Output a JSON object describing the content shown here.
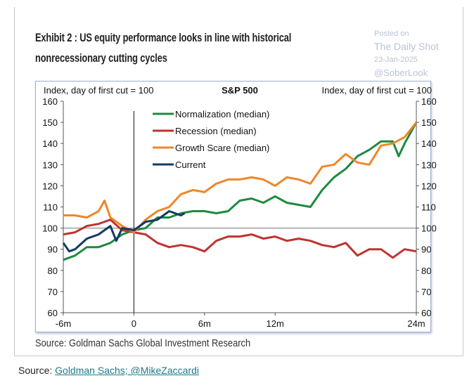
{
  "card": {
    "title_line1": "Exhibit 2 : US equity performance looks in line with historical",
    "title_line2": "nonrecessionary cutting cycles",
    "chart_source": "Source: Goldman Sachs Global Investment Research"
  },
  "watermark": {
    "posted_on": "Posted on",
    "brand": "The Daily Shot",
    "date": "23-Jan-2025",
    "handle": "@SoberLook"
  },
  "footer": {
    "source_label": "Source:",
    "source_link": "Goldman Sachs; @MikeZaccardi"
  },
  "chart_data": {
    "type": "line",
    "title": "S&P 500",
    "ylabel_left": "Index, day of first cut = 100",
    "ylabel_right": "Index, day of first cut = 100",
    "xlim": [
      -6,
      24
    ],
    "ylim": [
      60,
      160
    ],
    "x_ticks": [
      {
        "value": -6,
        "label": "-6m"
      },
      {
        "value": 0,
        "label": "0"
      },
      {
        "value": 6,
        "label": "6m"
      },
      {
        "value": 12,
        "label": "12m"
      },
      {
        "value": 24,
        "label": "24m"
      }
    ],
    "y_ticks": [
      60,
      70,
      80,
      90,
      100,
      110,
      120,
      130,
      140,
      150,
      160
    ],
    "reference_lines": {
      "y": 100,
      "x": 0
    },
    "grid": false,
    "legend_position": "top-left-center",
    "series": [
      {
        "name": "Normalization (median)",
        "color": "#1e8a3e",
        "x": [
          -6,
          -5,
          -4,
          -3,
          -2,
          -1,
          0,
          1,
          2,
          3,
          4,
          5,
          6,
          7,
          8,
          9,
          10,
          11,
          12,
          13,
          14,
          15,
          16,
          17,
          18,
          19,
          20,
          21,
          22,
          22.5,
          23,
          24
        ],
        "y": [
          85,
          87,
          91,
          91,
          93,
          97,
          99,
          100,
          105,
          105,
          107,
          108,
          108,
          107,
          108,
          113,
          114,
          112,
          115,
          112,
          111,
          110,
          118,
          124,
          128,
          134,
          137,
          141,
          141,
          134,
          140,
          150
        ]
      },
      {
        "name": "Recession (median)",
        "color": "#c0322f",
        "x": [
          -6,
          -5,
          -4,
          -3,
          -2,
          -1,
          0,
          1,
          2,
          3,
          4,
          5,
          6,
          7,
          8,
          9,
          10,
          11,
          12,
          13,
          14,
          15,
          16,
          17,
          18,
          19,
          20,
          21,
          22,
          23,
          24
        ],
        "y": [
          97,
          98,
          101,
          102,
          104,
          99,
          98,
          97,
          93,
          91,
          92,
          91,
          89,
          94,
          96,
          96,
          97,
          95,
          96,
          94,
          95,
          94,
          92,
          91,
          93,
          87,
          90,
          90,
          86,
          90,
          89
        ]
      },
      {
        "name": "Growth Scare (median)",
        "color": "#f0862a",
        "x": [
          -6,
          -5,
          -4,
          -3,
          -2.5,
          -2,
          -1,
          0,
          1,
          2,
          3,
          4,
          5,
          6,
          7,
          8,
          9,
          10,
          11,
          12,
          13,
          14,
          15,
          16,
          17,
          18,
          19,
          20,
          21,
          22,
          23,
          24
        ],
        "y": [
          106,
          106,
          105,
          108,
          113,
          105,
          101,
          98,
          104,
          108,
          110,
          116,
          118,
          117,
          121,
          123,
          123,
          124,
          123,
          120,
          124,
          123,
          121,
          129,
          130,
          135,
          131,
          130,
          139,
          140,
          143,
          150
        ]
      },
      {
        "name": "Current",
        "color": "#133a63",
        "x": [
          -6,
          -5.5,
          -5,
          -4,
          -3,
          -2,
          -1.5,
          -1,
          0,
          1,
          2,
          3,
          4,
          4.3
        ],
        "y": [
          93,
          89,
          90,
          95,
          97,
          101,
          94,
          100,
          99,
          103,
          104,
          108,
          106,
          107
        ]
      }
    ]
  }
}
